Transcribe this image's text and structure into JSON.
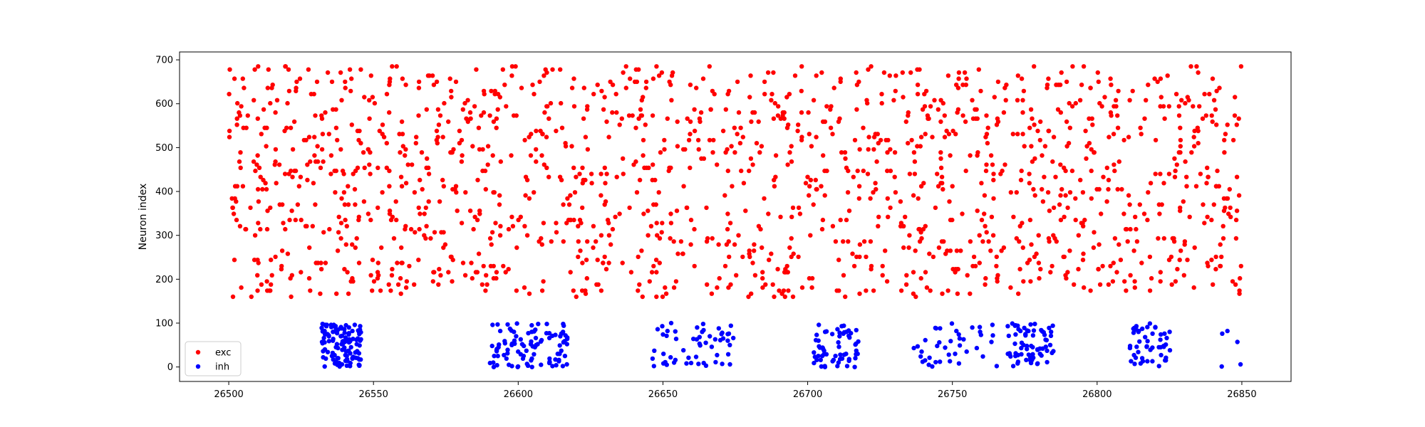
{
  "chart_data": {
    "type": "scatter",
    "title": "",
    "xlabel": "",
    "ylabel": "Neuron index",
    "xlim": [
      26483,
      26867
    ],
    "ylim": [
      -33,
      718
    ],
    "xticks": [
      26500,
      26550,
      26600,
      26650,
      26700,
      26750,
      26800,
      26850
    ],
    "yticks": [
      0,
      100,
      200,
      300,
      400,
      500,
      600,
      700
    ],
    "grid": false,
    "legend_position": "lower-left",
    "marker_size": 3.2,
    "series": [
      {
        "name": "exc",
        "color": "#ff0000",
        "generator": {
          "seed": 17,
          "count": 1550,
          "x_range": [
            26500,
            26850
          ],
          "y_range": [
            160,
            685
          ],
          "y_step": 7
        },
        "points": []
      },
      {
        "name": "inh",
        "color": "#0000ff",
        "generator": {
          "seed": 29,
          "y_range": [
            0,
            100
          ],
          "bursts": [
            {
              "x_range": [
                26532,
                26546
              ],
              "count": 120
            },
            {
              "x_range": [
                26590,
                26618
              ],
              "count": 100
            },
            {
              "x_range": [
                26646,
                26676
              ],
              "count": 55
            },
            {
              "x_range": [
                26702,
                26718
              ],
              "count": 60
            },
            {
              "x_range": [
                26735,
                26766
              ],
              "count": 40
            },
            {
              "x_range": [
                26769,
                26785
              ],
              "count": 70
            },
            {
              "x_range": [
                26811,
                26826
              ],
              "count": 50
            },
            {
              "x_range": [
                26843,
                26850
              ],
              "count": 5
            }
          ]
        },
        "points": []
      }
    ]
  }
}
